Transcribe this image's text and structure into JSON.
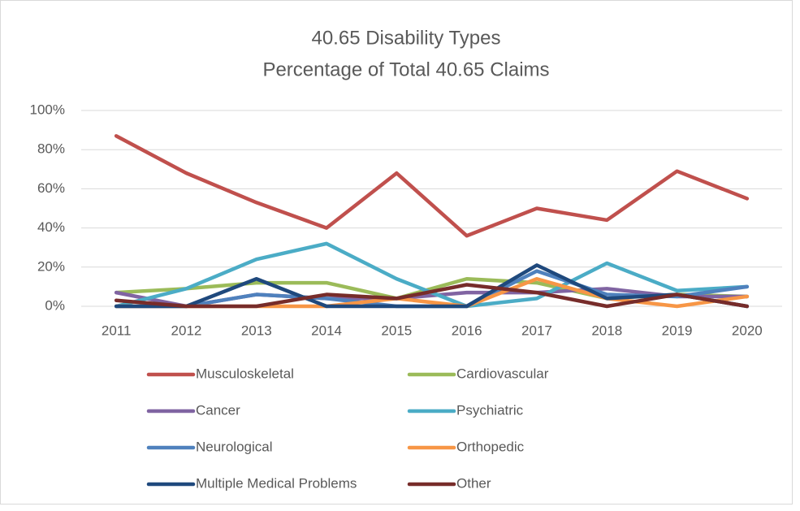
{
  "chart_data": {
    "type": "line",
    "title": "40.65 Disability Types",
    "subtitle": "Percentage of Total 40.65 Claims",
    "categories": [
      "2011",
      "2012",
      "2013",
      "2014",
      "2015",
      "2016",
      "2017",
      "2018",
      "2019",
      "2020"
    ],
    "series": [
      {
        "name": "Musculoskeletal",
        "color": "#c0504d",
        "values": [
          87,
          68,
          53,
          40,
          68,
          36,
          50,
          44,
          69,
          55
        ]
      },
      {
        "name": "Cardiovascular",
        "color": "#9bbb59",
        "values": [
          7,
          9,
          12,
          12,
          4,
          14,
          12,
          4,
          6,
          5
        ]
      },
      {
        "name": "Cancer",
        "color": "#8064a2",
        "values": [
          7,
          0,
          6,
          4,
          4,
          7,
          7,
          9,
          5,
          5
        ]
      },
      {
        "name": "Psychiatric",
        "color": "#4bacc6",
        "values": [
          0,
          9,
          24,
          32,
          14,
          0,
          4,
          22,
          8,
          10
        ]
      },
      {
        "name": "Neurological",
        "color": "#4f81bd",
        "values": [
          0,
          0,
          6,
          4,
          0,
          0,
          18,
          6,
          5,
          10
        ]
      },
      {
        "name": "Orthopedic",
        "color": "#f79646",
        "values": [
          0,
          0,
          0,
          0,
          4,
          0,
          14,
          4,
          0,
          5
        ]
      },
      {
        "name": "Multiple Medical Problems",
        "color": "#1f497d",
        "values": [
          0,
          0,
          14,
          0,
          0,
          0,
          21,
          4,
          6,
          0
        ]
      },
      {
        "name": "Other",
        "color": "#772c2a",
        "values": [
          3,
          0,
          0,
          6,
          4,
          11,
          7,
          0,
          6,
          0
        ]
      }
    ],
    "ylim": [
      0,
      100
    ],
    "yticks": [
      {
        "value": 0,
        "label": "0%"
      },
      {
        "value": 20,
        "label": "20%"
      },
      {
        "value": 40,
        "label": "40%"
      },
      {
        "value": 60,
        "label": "60%"
      },
      {
        "value": 80,
        "label": "80%"
      },
      {
        "value": 100,
        "label": "100%"
      }
    ],
    "grid": true,
    "legend": "bottom"
  }
}
